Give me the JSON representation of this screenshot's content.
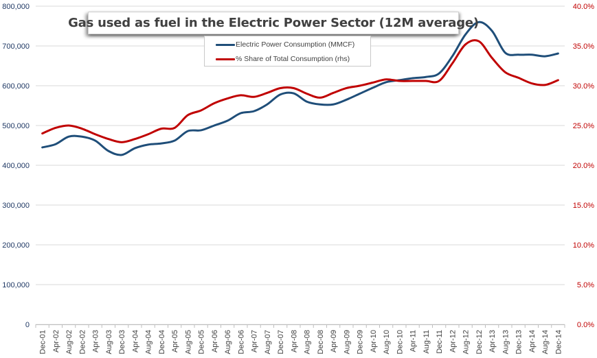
{
  "chart_data": {
    "type": "line",
    "title": "Gas used as fuel in the Electric Power Sector (12M average)",
    "xlabel": "",
    "ylabel": "",
    "y2label": "",
    "categories": [
      "Dec-01",
      "Apr-02",
      "Aug-02",
      "Dec-02",
      "Apr-03",
      "Aug-03",
      "Dec-03",
      "Apr-04",
      "Aug-04",
      "Dec-04",
      "Apr-05",
      "Aug-05",
      "Dec-05",
      "Apr-06",
      "Aug-06",
      "Dec-06",
      "Apr-07",
      "Aug-07",
      "Dec-07",
      "Apr-08",
      "Aug-08",
      "Dec-08",
      "Apr-09",
      "Aug-09",
      "Dec-09",
      "Apr-10",
      "Aug-10",
      "Dec-10",
      "Apr-11",
      "Aug-11",
      "Dec-11",
      "Apr-12",
      "Aug-12",
      "Dec-12",
      "Apr-13",
      "Aug-13",
      "Dec-13",
      "Apr-14",
      "Aug-14",
      "Dec-14"
    ],
    "ylim": [
      0,
      800000
    ],
    "y_ticks": [
      "0",
      "100,000",
      "200,000",
      "300,000",
      "400,000",
      "500,000",
      "600,000",
      "700,000",
      "800,000"
    ],
    "y2lim": [
      0,
      40
    ],
    "y2_ticks": [
      "0.0%",
      "5.0%",
      "10.0%",
      "15.0%",
      "20.0%",
      "25.0%",
      "30.0%",
      "35.0%",
      "40.0%"
    ],
    "grid": true,
    "legend_position": "top-center",
    "series": [
      {
        "name": "Electric Power Consumption (MMCF)",
        "axis": "left",
        "color": "#1f4e79",
        "values": [
          445000,
          453000,
          472000,
          472000,
          462000,
          436000,
          426000,
          443000,
          452000,
          455000,
          462000,
          486000,
          488000,
          500000,
          512000,
          531000,
          536000,
          553000,
          578000,
          581000,
          560000,
          553000,
          553000,
          565000,
          580000,
          595000,
          609000,
          614000,
          619000,
          622000,
          631000,
          674000,
          729000,
          760000,
          738000,
          683000,
          678000,
          678000,
          674000,
          681000
        ]
      },
      {
        "name": "% Share of Total Consumption (rhs)",
        "axis": "right",
        "color": "#c00000",
        "values": [
          24.0,
          24.7,
          25.0,
          24.6,
          23.9,
          23.3,
          22.9,
          23.3,
          23.9,
          24.6,
          24.7,
          26.3,
          26.9,
          27.8,
          28.4,
          28.8,
          28.6,
          29.1,
          29.7,
          29.7,
          29.0,
          28.5,
          29.1,
          29.7,
          30.0,
          30.4,
          30.8,
          30.6,
          30.6,
          30.6,
          30.6,
          32.8,
          35.2,
          35.6,
          33.5,
          31.7,
          31.0,
          30.3,
          30.1,
          30.7
        ]
      }
    ]
  }
}
